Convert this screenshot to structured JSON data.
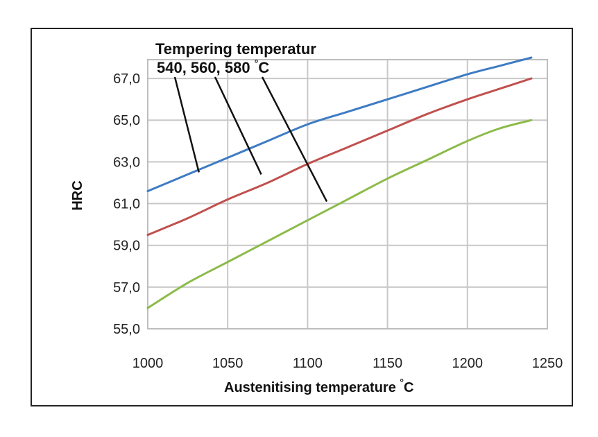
{
  "chart_data": {
    "type": "line",
    "title": "",
    "xlabel": "Austenitising temperature",
    "xlabel_unit": "°C",
    "ylabel": "HRC",
    "xlim": [
      1000,
      1250
    ],
    "ylim": [
      55,
      67.9
    ],
    "x_ticks": [
      1000,
      1050,
      1100,
      1150,
      1200,
      1250
    ],
    "x_tick_labels": [
      "1000",
      "1050",
      "1100",
      "1150",
      "1200",
      "1250"
    ],
    "y_ticks": [
      55,
      57,
      59,
      61,
      63,
      65,
      67
    ],
    "y_tick_labels": [
      "55,0",
      "57,0",
      "59,0",
      "61,0",
      "63,0",
      "65,0",
      "67,0"
    ],
    "grid": true,
    "annotation": {
      "line1": "Tempering temperatur",
      "line2": "540, 560, 580",
      "unit": "°C"
    },
    "series": [
      {
        "name": "540",
        "color": "#3e7bc4",
        "x": [
          1000,
          1025,
          1050,
          1075,
          1100,
          1125,
          1150,
          1175,
          1200,
          1220,
          1240
        ],
        "values": [
          61.6,
          62.4,
          63.2,
          64.0,
          64.8,
          65.4,
          66.0,
          66.6,
          67.2,
          67.6,
          68.0
        ],
        "pointer": {
          "x": 1032,
          "y": 62.5
        }
      },
      {
        "name": "560",
        "color": "#c0504d",
        "x": [
          1000,
          1025,
          1050,
          1075,
          1100,
          1125,
          1150,
          1175,
          1200,
          1220,
          1240
        ],
        "values": [
          59.5,
          60.3,
          61.2,
          62.0,
          62.9,
          63.7,
          64.5,
          65.3,
          66.0,
          66.5,
          67.0
        ],
        "pointer": {
          "x": 1071,
          "y": 62.4
        }
      },
      {
        "name": "580",
        "color": "#8cbb4a",
        "x": [
          1000,
          1025,
          1050,
          1075,
          1100,
          1125,
          1150,
          1175,
          1200,
          1220,
          1240
        ],
        "values": [
          56.0,
          57.2,
          58.2,
          59.2,
          60.2,
          61.2,
          62.2,
          63.1,
          64.0,
          64.6,
          65.0
        ],
        "pointer": {
          "x": 1112,
          "y": 61.1
        }
      }
    ]
  }
}
